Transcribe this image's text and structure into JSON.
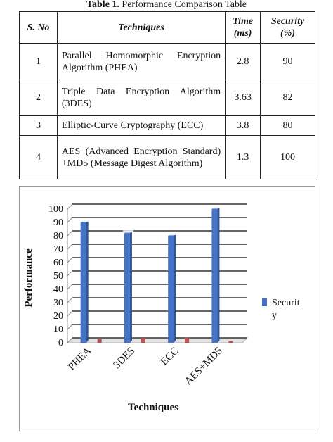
{
  "table": {
    "caption_label": "Table 1.",
    "caption_text": " Performance Comparison Table",
    "headers": [
      "S. No",
      "Techniques",
      "Time (ms)",
      "Security (%)"
    ],
    "rows": [
      {
        "sno": "1",
        "technique": "Parallel Homomorphic Encryption Algorithm (PHEA)",
        "time": "2.8",
        "security": "90"
      },
      {
        "sno": "2",
        "technique": "Triple Data Encryption Algorithm (3DES)",
        "time": "3.63",
        "security": "82"
      },
      {
        "sno": "3",
        "technique": "Elliptic-Curve Cryptography (ECC)",
        "time": "3.8",
        "security": "80"
      },
      {
        "sno": "4",
        "technique": "AES (Advanced Encryption Standard) +MD5 (Message Digest Algorithm)",
        "time": "1.3",
        "security": "100"
      }
    ]
  },
  "chart_data": {
    "type": "bar",
    "categories": [
      "PHEA",
      "3DES",
      "ECC",
      "AES+MD5"
    ],
    "series": [
      {
        "name": "Security",
        "values": [
          90,
          82,
          80,
          100
        ],
        "color": "#4472c4"
      },
      {
        "values": [
          2.8,
          3.63,
          3.8,
          1.3
        ],
        "color": "#c0504d"
      }
    ],
    "xlabel": "Techniques",
    "ylabel": "Performance",
    "ylim": [
      0,
      100
    ],
    "yticks": [
      0,
      10,
      20,
      30,
      40,
      50,
      60,
      70,
      80,
      90,
      100
    ],
    "legend_label": "Securit y",
    "legend_position": "right",
    "grid": true
  }
}
